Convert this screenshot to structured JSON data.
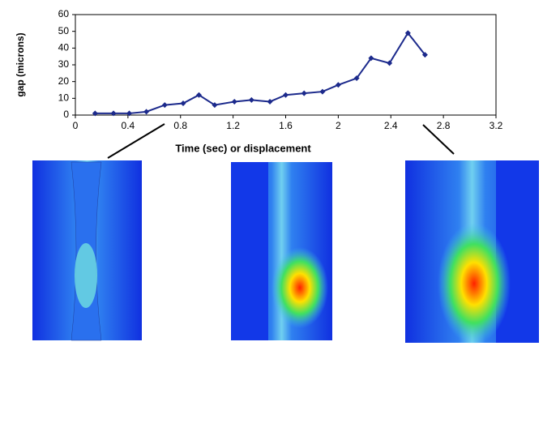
{
  "chart_data": {
    "type": "line",
    "x_label": "Time (sec) or displacement",
    "y_label": "gap (microns)",
    "xlim": [
      0,
      3.2
    ],
    "xticks": [
      0,
      0.4,
      0.8,
      1.2,
      1.6,
      2,
      2.4,
      2.8,
      3.2
    ],
    "ylim": [
      0,
      60
    ],
    "yticks": [
      0,
      10,
      20,
      30,
      40,
      50,
      60
    ],
    "x": [
      0.15,
      0.29,
      0.41,
      0.54,
      0.68,
      0.82,
      0.94,
      1.06,
      1.21,
      1.34,
      1.48,
      1.6,
      1.74,
      1.88,
      2.0,
      2.14,
      2.25,
      2.39,
      2.53,
      2.66
    ],
    "series": [
      {
        "color": "#1c2a8c",
        "values": [
          1,
          1,
          1,
          2,
          6,
          7,
          12,
          6,
          8,
          9,
          8,
          12,
          13,
          14,
          18,
          22,
          34,
          31,
          49,
          36
        ]
      }
    ]
  }
}
